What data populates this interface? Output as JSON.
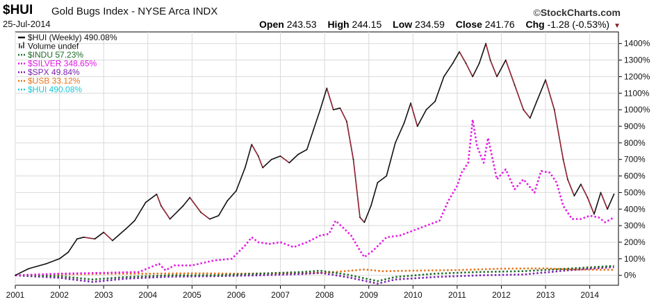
{
  "header": {
    "symbol": "$HUI",
    "name": "Gold Bugs Index - NYSE Arca INDX",
    "date": "25-Jul-2014",
    "brand": "StockCharts.com",
    "brand_icon": "copyright-icon",
    "open_label": "Open",
    "open": "243.53",
    "high_label": "High",
    "high": "244.15",
    "low_label": "Low",
    "low": "234.59",
    "close_label": "Close",
    "close": "241.76",
    "chg_label": "Chg",
    "chg": "-1.28 (-0.53%)",
    "chg_icon": "triangle-down-icon"
  },
  "colors": {
    "hui_line": "#111111",
    "hui_up": "#1a1a1a",
    "hui_down": "#b22234",
    "indu": "#1f6b2a",
    "silver": "#e317e3",
    "spx": "#7a1fb0",
    "usb": "#e8731a",
    "hui_overlay": "#18c9d8",
    "grid": "#d9d9d9"
  },
  "chart_data": {
    "type": "line",
    "title": "$HUI Gold Bugs Index - NYSE Arca INDX",
    "xlim": [
      2001.0,
      2014.65
    ],
    "ylim": [
      -60,
      1470
    ],
    "y_ticks": [
      0,
      100,
      200,
      300,
      400,
      500,
      600,
      700,
      800,
      900,
      1000,
      1100,
      1200,
      1300,
      1400
    ],
    "y_tick_labels": [
      "0%",
      "100%",
      "200%",
      "300%",
      "400%",
      "500%",
      "600%",
      "700%",
      "800%",
      "900%",
      "1000%",
      "1100%",
      "1200%",
      "1300%",
      "1400%"
    ],
    "x_ticks": [
      2001,
      2002,
      2003,
      2004,
      2005,
      2006,
      2007,
      2008,
      2009,
      2010,
      2011,
      2012,
      2013,
      2014
    ],
    "x_tick_labels": [
      "2001",
      "2002",
      "2003",
      "2004",
      "2005",
      "2006",
      "2007",
      "2008",
      "2009",
      "2010",
      "2011",
      "2012",
      "2013",
      "2014"
    ],
    "grid": true,
    "legend_position": "top-left",
    "legend": [
      {
        "label": "$HUI (Weekly) 490.08%",
        "style": "solid",
        "color_key": "hui_line"
      },
      {
        "label": "Volume undef",
        "style": "bars",
        "color_key": "hui_line"
      },
      {
        "label": "$INDU 57.23%",
        "style": "dotted",
        "color_key": "indu"
      },
      {
        "label": "$SILVER 348.65%",
        "style": "dotted",
        "color_key": "silver"
      },
      {
        "label": "$SPX 49.84%",
        "style": "dotted",
        "color_key": "spx"
      },
      {
        "label": "$USB 33.12%",
        "style": "dotted",
        "color_key": "usb"
      },
      {
        "label": "$HUI 490.08%",
        "style": "dotted",
        "color_key": "hui_overlay"
      }
    ],
    "series": [
      {
        "name": "$HUI (Weekly)",
        "style": "solid",
        "color_key": "hui_line",
        "x": [
          2001.0,
          2001.3,
          2001.7,
          2002.0,
          2002.2,
          2002.4,
          2002.55,
          2002.8,
          2003.0,
          2003.2,
          2003.5,
          2003.7,
          2003.95,
          2004.2,
          2004.3,
          2004.5,
          2004.8,
          2004.95,
          2005.2,
          2005.4,
          2005.6,
          2005.8,
          2006.0,
          2006.2,
          2006.35,
          2006.5,
          2006.6,
          2006.8,
          2007.0,
          2007.2,
          2007.4,
          2007.6,
          2007.75,
          2007.9,
          2008.05,
          2008.2,
          2008.35,
          2008.5,
          2008.65,
          2008.8,
          2008.9,
          2009.05,
          2009.2,
          2009.4,
          2009.6,
          2009.8,
          2009.95,
          2010.1,
          2010.3,
          2010.5,
          2010.7,
          2010.9,
          2011.05,
          2011.2,
          2011.35,
          2011.5,
          2011.65,
          2011.75,
          2011.9,
          2012.1,
          2012.3,
          2012.5,
          2012.65,
          2012.8,
          2013.0,
          2013.2,
          2013.4,
          2013.5,
          2013.65,
          2013.8,
          2013.95,
          2014.1,
          2014.25,
          2014.4,
          2014.55
        ],
        "y": [
          0,
          40,
          70,
          100,
          140,
          220,
          230,
          220,
          260,
          210,
          280,
          330,
          440,
          490,
          420,
          340,
          420,
          470,
          380,
          340,
          360,
          450,
          510,
          650,
          790,
          720,
          650,
          700,
          720,
          680,
          730,
          760,
          880,
          1000,
          1130,
          1000,
          1010,
          930,
          700,
          350,
          320,
          420,
          560,
          600,
          800,
          920,
          1040,
          900,
          1000,
          1050,
          1200,
          1280,
          1350,
          1280,
          1200,
          1280,
          1400,
          1300,
          1200,
          1300,
          1150,
          1000,
          950,
          1050,
          1180,
          1000,
          700,
          580,
          480,
          550,
          470,
          370,
          500,
          400,
          490
        ]
      },
      {
        "name": "$SILVER",
        "style": "dotted",
        "color_key": "silver",
        "x": [
          2001.0,
          2002.0,
          2003.0,
          2003.8,
          2004.25,
          2004.4,
          2004.6,
          2005.0,
          2005.5,
          2005.9,
          2006.2,
          2006.35,
          2006.5,
          2006.75,
          2007.0,
          2007.3,
          2007.6,
          2007.9,
          2008.1,
          2008.25,
          2008.45,
          2008.6,
          2008.8,
          2008.9,
          2009.1,
          2009.4,
          2009.7,
          2010.0,
          2010.3,
          2010.6,
          2010.8,
          2011.0,
          2011.1,
          2011.25,
          2011.35,
          2011.45,
          2011.6,
          2011.7,
          2011.9,
          2012.1,
          2012.3,
          2012.5,
          2012.75,
          2012.9,
          2013.1,
          2013.25,
          2013.4,
          2013.6,
          2013.8,
          2014.0,
          2014.2,
          2014.35,
          2014.55
        ],
        "y": [
          0,
          10,
          15,
          20,
          70,
          30,
          60,
          60,
          90,
          100,
          180,
          230,
          200,
          190,
          200,
          170,
          200,
          240,
          250,
          330,
          280,
          240,
          150,
          110,
          150,
          230,
          240,
          270,
          300,
          330,
          450,
          540,
          620,
          680,
          940,
          780,
          680,
          830,
          580,
          640,
          520,
          580,
          500,
          630,
          620,
          560,
          420,
          340,
          340,
          360,
          350,
          320,
          350
        ]
      },
      {
        "name": "$INDU",
        "style": "dotted",
        "color_key": "indu",
        "x": [
          2001.0,
          2002.0,
          2002.75,
          2003.5,
          2004.5,
          2005.5,
          2006.5,
          2007.5,
          2007.9,
          2008.5,
          2009.2,
          2009.6,
          2010.5,
          2011.5,
          2012.5,
          2013.5,
          2014.55
        ],
        "y": [
          0,
          -5,
          -25,
          -10,
          0,
          0,
          10,
          20,
          28,
          5,
          -35,
          -10,
          10,
          20,
          25,
          40,
          57
        ]
      },
      {
        "name": "$SPX",
        "style": "dotted",
        "color_key": "spx",
        "x": [
          2001.0,
          2002.0,
          2002.75,
          2003.5,
          2004.5,
          2005.5,
          2006.5,
          2007.5,
          2007.9,
          2008.5,
          2009.2,
          2009.6,
          2010.5,
          2011.5,
          2012.5,
          2013.5,
          2014.55
        ],
        "y": [
          0,
          -15,
          -40,
          -20,
          -8,
          -5,
          0,
          8,
          15,
          -10,
          -50,
          -25,
          -10,
          0,
          5,
          30,
          50
        ]
      },
      {
        "name": "$USB",
        "style": "dotted",
        "color_key": "usb",
        "x": [
          2001.0,
          2002.0,
          2003.0,
          2004.0,
          2005.0,
          2006.0,
          2007.0,
          2008.0,
          2008.9,
          2009.3,
          2010.0,
          2011.0,
          2012.0,
          2013.0,
          2013.6,
          2014.55
        ],
        "y": [
          0,
          5,
          10,
          10,
          12,
          10,
          12,
          15,
          35,
          25,
          28,
          32,
          40,
          42,
          35,
          33
        ]
      }
    ]
  }
}
